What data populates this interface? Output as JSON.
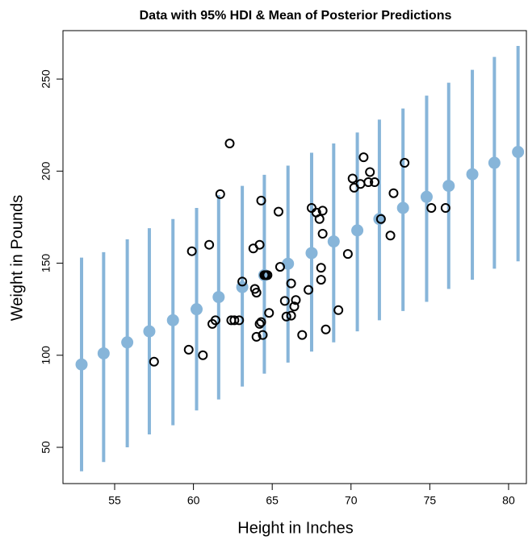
{
  "chart_data": {
    "type": "scatter",
    "title": "Data with 95% HDI & Mean of Posterior Predictions",
    "x_label": "Height in Inches",
    "y_label": "Weight in Pounds",
    "xlim": [
      51.72,
      81.13
    ],
    "ylim": [
      30.3,
      276.3
    ],
    "xticks": [
      55,
      60,
      65,
      70,
      75,
      80
    ],
    "yticks": [
      50,
      100,
      150,
      200,
      250
    ],
    "grid": false,
    "predictions": {
      "color": "#87b5d9",
      "x": [
        52.9,
        54.3,
        55.8,
        57.2,
        58.7,
        60.2,
        61.6,
        63.1,
        64.5,
        66.0,
        67.5,
        68.9,
        70.4,
        71.8,
        73.3,
        74.8,
        76.2,
        77.7,
        79.1,
        80.6
      ],
      "mean": [
        95,
        101,
        107,
        113,
        119,
        125,
        131.6,
        137,
        143.5,
        149.7,
        155.5,
        161.8,
        167.8,
        174,
        180,
        186,
        192,
        198.3,
        204.5,
        210.4
      ],
      "hdi_low": [
        37,
        42,
        50,
        57,
        62,
        70,
        76,
        83,
        90,
        96,
        102,
        107,
        113,
        119,
        124,
        129,
        136,
        141,
        147,
        151
      ],
      "hdi_high": [
        153,
        156,
        163,
        169,
        174,
        180,
        187,
        192,
        198,
        203,
        210,
        215,
        221,
        228,
        234,
        241,
        248,
        255,
        262,
        268
      ]
    },
    "points": {
      "color": "#000000",
      "x": [
        57.5,
        59.7,
        60.6,
        59.9,
        61.0,
        61.2,
        61.4,
        61.7,
        62.3,
        62.4,
        62.6,
        62.9,
        63.1,
        63.8,
        63.9,
        64.0,
        64.2,
        64.3,
        64.0,
        64.2,
        64.3,
        64.4,
        64.5,
        64.6,
        64.7,
        64.8,
        65.4,
        65.5,
        65.8,
        65.9,
        66.2,
        66.2,
        66.4,
        66.5,
        66.9,
        67.3,
        67.5,
        67.8,
        68.0,
        68.2,
        68.1,
        68.1,
        68.2,
        68.4,
        69.2,
        69.8,
        70.1,
        70.2,
        70.6,
        70.8,
        71.1,
        71.2,
        71.5,
        71.9,
        72.5,
        72.7,
        73.4,
        75.1,
        76.0
      ],
      "y": [
        96.5,
        103,
        100,
        156.5,
        160,
        117,
        119,
        187.5,
        215,
        119,
        119,
        119,
        140,
        158,
        136,
        134,
        160,
        184,
        110,
        117,
        118,
        111,
        143.5,
        143.5,
        143.5,
        123,
        178,
        148,
        129.5,
        121,
        139,
        121.5,
        126.5,
        130,
        111,
        135.5,
        180,
        177.5,
        174,
        178.5,
        141,
        147.5,
        166,
        114,
        124.5,
        155,
        196,
        191,
        193,
        207.5,
        194,
        199.5,
        194,
        174,
        165,
        188,
        204.5,
        180,
        180
      ]
    }
  }
}
